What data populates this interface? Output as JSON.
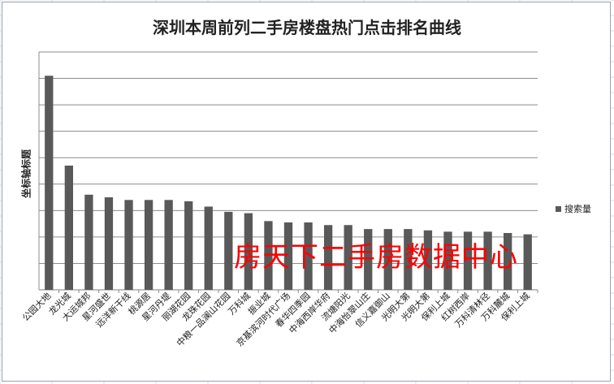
{
  "chart_data": {
    "type": "bar",
    "title": "深圳本周前列二手房楼盘热门点击排名曲线",
    "ylabel": "坐标轴标题",
    "xlabel": "",
    "ylim": [
      0,
      9
    ],
    "grid": true,
    "legend_position": "right",
    "bar_color": "#595959",
    "categories": [
      "公园大地",
      "龙光城",
      "大运城邦",
      "星河盛世",
      "远洋新干线",
      "桃源居",
      "星河丹堤",
      "丽湖花园",
      "龙珠花园",
      "中粮一品澜山花园",
      "万科城",
      "振业城",
      "京基滨河时代广场",
      "春华四季园",
      "中海西岸华府",
      "流塘阳光",
      "中海怡翠山庄",
      "信义嘉御山",
      "光明大第",
      "光明大第",
      "保利上城",
      "红树西岸",
      "万科清林径",
      "万科麓城",
      "保利上城"
    ],
    "series": [
      {
        "name": "搜索量",
        "values": [
          8.1,
          4.7,
          3.6,
          3.5,
          3.4,
          3.4,
          3.4,
          3.35,
          3.15,
          2.95,
          2.9,
          2.6,
          2.55,
          2.55,
          2.45,
          2.45,
          2.3,
          2.3,
          2.3,
          2.25,
          2.2,
          2.2,
          2.2,
          2.15,
          2.1
        ]
      }
    ]
  },
  "watermark": "房天下二手房数据中心"
}
